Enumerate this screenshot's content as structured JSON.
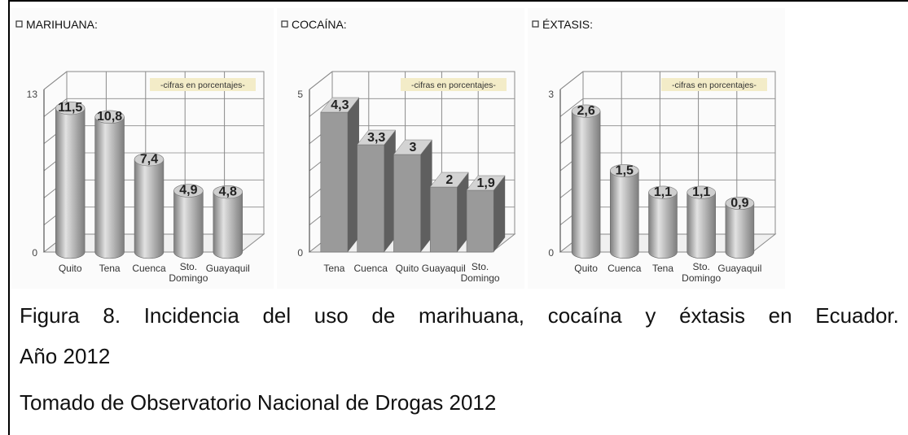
{
  "chart_data": [
    {
      "type": "bar",
      "title": "MARIHUANA:",
      "note": "-cifras en porcentajes-",
      "categories": [
        "Quito",
        "Tena",
        "Cuenca",
        "Sto. Domingo",
        "Guayaquil"
      ],
      "values": [
        11.5,
        10.8,
        7.4,
        4.9,
        4.8
      ],
      "value_labels": [
        "11,5",
        "10,8",
        "7,4",
        "4,9",
        "4,8"
      ],
      "yticks": [
        "0",
        "13"
      ],
      "ylim": [
        0,
        13
      ],
      "shape": "cylinder",
      "grid": true
    },
    {
      "type": "bar",
      "title": "COCAÍNA:",
      "note": "-cifras en porcentajes-",
      "categories": [
        "Tena",
        "Cuenca",
        "Quito",
        "Guayaquil",
        "Sto. Domingo"
      ],
      "values": [
        4.3,
        3.3,
        3.0,
        2.0,
        1.9
      ],
      "value_labels": [
        "4,3",
        "3,3",
        "3",
        "2",
        "1,9"
      ],
      "yticks": [
        "0",
        "5"
      ],
      "ylim": [
        0,
        5
      ],
      "shape": "box",
      "grid": true
    },
    {
      "type": "bar",
      "title": "ÉXTASIS:",
      "note": "-cifras en porcentajes-",
      "categories": [
        "Quito",
        "Cuenca",
        "Tena",
        "Sto. Domingo",
        "Guayaquil"
      ],
      "values": [
        2.6,
        1.5,
        1.1,
        1.1,
        0.9
      ],
      "value_labels": [
        "2,6",
        "1,5",
        "1,1",
        "1,1",
        "0,9"
      ],
      "yticks": [
        "0",
        "3"
      ],
      "ylim": [
        0,
        3
      ],
      "shape": "cylinder",
      "grid": true
    }
  ],
  "caption": {
    "line1_words": [
      "Figura",
      "8.",
      "Incidencia",
      "del",
      "uso",
      "de",
      "marihuana,",
      "cocaína",
      "y",
      "éxtasis",
      "en",
      "Ecuador."
    ],
    "line2": "Año 2012",
    "line3": "Tomado de Observatorio Nacional de Drogas 2012"
  },
  "colors": {
    "bar_fill": "#b5b5b5",
    "bar_dark": "#7d7d7d",
    "bar_light": "#e2e2e2",
    "grid": "#8a8a8a",
    "note_bg": "#f3ecc8",
    "text": "#111111"
  }
}
